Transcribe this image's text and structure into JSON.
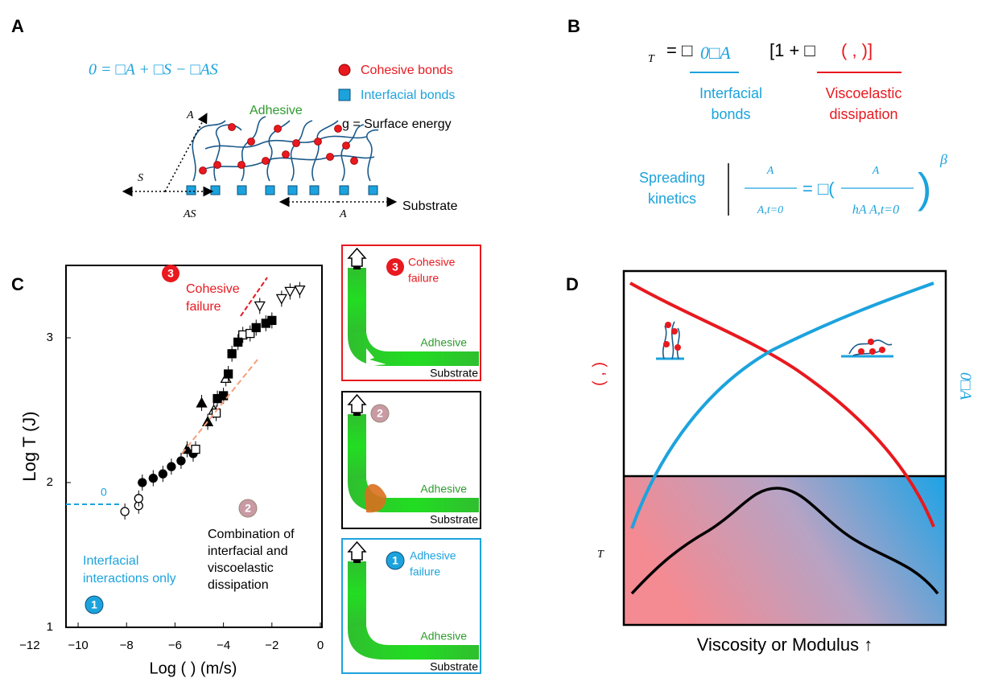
{
  "panel_labels": [
    "A",
    "B",
    "C",
    "D"
  ],
  "panel_a": {
    "equation": "0 = □A + □S − □AS",
    "legend": [
      "Cohesive bonds",
      "Interfacial bonds",
      "g = Surface energy"
    ],
    "axis_labels": [
      "A",
      "S",
      "AS",
      "A"
    ],
    "adhesive": "Adhesive",
    "substrate": "Substrate"
  },
  "panel_b": {
    "eq_lhs": "T",
    "eq_mid": "= □",
    "eq_blue": "0□A",
    "eq_bracket": "[1 + □",
    "eq_red": "( , )]",
    "interfacial": [
      "Interfacial",
      "bonds"
    ],
    "viscoelastic": [
      "Viscoelastic",
      "dissipation"
    ],
    "spreading": [
      "Spreading",
      "kinetics"
    ],
    "frac_left_num": "A",
    "frac_left_den": "A,t=0",
    "equals": "= □(",
    "frac_right_num": "A",
    "frac_right_den": "hA  A,t=0",
    "close": ")",
    "exponent": "β"
  },
  "panel_c": {
    "xlabel": "Log (  ) (m/s)",
    "ylabel": "Log  T (J)",
    "xlim": [
      -10.5,
      0
    ],
    "ylim": [
      1,
      3.5
    ],
    "xticks": [
      {
        "value": -12,
        "label": "−12"
      },
      {
        "value": -10,
        "label": "−10"
      },
      {
        "value": -8,
        "label": "−8"
      },
      {
        "value": -6,
        "label": "−6"
      },
      {
        "value": -4,
        "label": "−4"
      },
      {
        "value": -2,
        "label": "−2"
      },
      0
    ],
    "yticks": [
      1,
      2,
      3
    ],
    "series": [
      {
        "marker": "open-circle",
        "x": [
          -8.07,
          -7.5,
          -7.5
        ],
        "y": [
          1.8,
          1.84,
          1.89
        ]
      },
      {
        "marker": "filled-circle",
        "x": [
          -7.35,
          -6.9,
          -6.5,
          -6.15,
          -5.75,
          -5.25
        ],
        "y": [
          2.0,
          2.03,
          2.06,
          2.11,
          2.15,
          2.2
        ]
      },
      {
        "marker": "filled-triangle",
        "x": [
          -5.5,
          -4.9,
          -4.65
        ],
        "y": [
          2.23,
          2.55,
          2.42
        ]
      },
      {
        "marker": "open-triangle",
        "x": [
          -4.4,
          -3.9
        ],
        "y": [
          2.5,
          2.72
        ]
      },
      {
        "marker": "open-square",
        "x": [
          -5.15,
          -4.3,
          -3.2,
          -2.9
        ],
        "y": [
          2.23,
          2.48,
          3.02,
          3.03
        ]
      },
      {
        "marker": "filled-square",
        "x": [
          -4.25,
          -4.0,
          -3.8,
          -3.65,
          -3.4,
          -2.65,
          -2.25,
          -2.0
        ],
        "y": [
          2.58,
          2.6,
          2.75,
          2.89,
          2.97,
          3.07,
          3.1,
          3.12
        ]
      },
      {
        "marker": "open-triangle-down",
        "x": [
          -2.5,
          -1.6,
          -1.25,
          -0.85
        ],
        "y": [
          3.22,
          3.27,
          3.32,
          3.33
        ]
      }
    ],
    "annotations": {
      "cohesive": [
        "Cohesive",
        "failure"
      ],
      "cohesive_number": "3",
      "combination": [
        "Combination of",
        "interfacial and",
        "viscoelastic",
        "dissipation"
      ],
      "combination_number": "2",
      "baseline": "0",
      "interfacial": [
        "Interfacial",
        "interactions only"
      ],
      "interfacial_number": "1"
    }
  },
  "side_boxes": [
    {
      "number": "3",
      "title": [
        "Cohesive",
        "failure"
      ],
      "adhesive": "Adhesive",
      "substrate": "Substrate"
    },
    {
      "number": "2",
      "adhesive": "Adhesive",
      "substrate": "Substrate"
    },
    {
      "number": "1",
      "title": [
        "Adhesive",
        "failure"
      ],
      "adhesive": "Adhesive",
      "substrate": "Substrate"
    }
  ],
  "panel_d": {
    "left_label": "( , )",
    "right_label": "0□A",
    "bottom_label": "T",
    "xlabel": "Viscosity or Modulus ↑"
  }
}
